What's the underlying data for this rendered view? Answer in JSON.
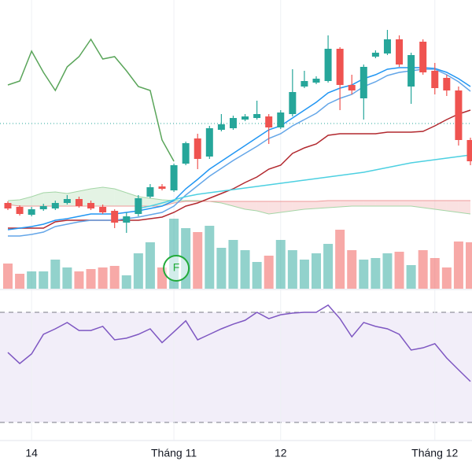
{
  "chart_data": {
    "type": "candlestick",
    "categories": [
      null,
      null,
      "14",
      null,
      null,
      null,
      null,
      null,
      null,
      null,
      null,
      null,
      null,
      null,
      "Tháng 11",
      null,
      null,
      null,
      null,
      null,
      null,
      null,
      null,
      "12",
      null,
      null,
      null,
      null,
      null,
      null,
      null,
      null,
      null,
      null,
      null,
      null,
      "Tháng 12",
      null,
      null,
      null
    ],
    "open": [
      342,
      337,
      327,
      334,
      335,
      342,
      347,
      342,
      337,
      332,
      317,
      328,
      350,
      363,
      358,
      392,
      424,
      401,
      435,
      437,
      448,
      450,
      452,
      438,
      455,
      490,
      495,
      497,
      538,
      492,
      475,
      528,
      532,
      550,
      490,
      547,
      510,
      501,
      485,
      422
    ],
    "high": [
      344,
      339,
      337,
      341,
      345,
      352,
      350,
      345,
      340,
      334,
      330,
      352,
      366,
      366,
      392,
      420,
      430,
      440,
      455,
      453,
      455,
      472,
      455,
      460,
      512,
      510,
      503,
      555,
      540,
      505,
      518,
      536,
      562,
      555,
      533,
      550,
      520,
      505,
      490,
      425
    ],
    "low": [
      333,
      326,
      325,
      332,
      333,
      340,
      336,
      333,
      328,
      310,
      304,
      325,
      348,
      358,
      356,
      390,
      385,
      398,
      433,
      435,
      446,
      448,
      417,
      436,
      452,
      488,
      493,
      495,
      460,
      480,
      448,
      526,
      530,
      515,
      468,
      505,
      480,
      478,
      415,
      390
    ],
    "close": [
      335,
      328,
      334,
      338,
      342,
      347,
      338,
      335,
      330,
      317,
      325,
      348,
      362,
      360,
      390,
      418,
      398,
      437,
      442,
      450,
      452,
      455,
      438,
      457,
      483,
      497,
      500,
      538,
      492,
      485,
      515,
      533,
      550,
      518,
      530,
      508,
      488,
      485,
      422,
      395
    ],
    "up_color": "#26a69a",
    "down_color": "#ef5350",
    "ylim": [
      0,
      600
    ],
    "price_line": 443,
    "price_line_color": "#26a69a",
    "lines": [
      {
        "color": "#5aa55a",
        "values": [
          492,
          497,
          535,
          508,
          485,
          515,
          528,
          550,
          525,
          528,
          510,
          490,
          485,
          422,
          395,
          null,
          null,
          null,
          null,
          null,
          null,
          null,
          null,
          null,
          null,
          null,
          null,
          null,
          null,
          null,
          null,
          null,
          null,
          null,
          null,
          null,
          null,
          null,
          null,
          null
        ]
      },
      {
        "color": "#b2282e",
        "values": [
          310,
          310,
          310,
          310,
          318,
          320,
          320,
          320,
          320,
          320,
          320,
          320,
          322,
          324,
          330,
          338,
          342,
          348,
          354,
          360,
          368,
          375,
          385,
          390,
          405,
          412,
          417,
          428,
          430,
          430,
          430,
          430,
          432,
          432,
          432,
          433,
          440,
          448,
          455,
          460
        ]
      },
      {
        "color": "#2196f3",
        "values": [
          308,
          310,
          312,
          315,
          320,
          322,
          325,
          328,
          328,
          328,
          330,
          332,
          335,
          338,
          345,
          360,
          372,
          385,
          395,
          405,
          415,
          425,
          435,
          440,
          450,
          460,
          470,
          482,
          488,
          492,
          500,
          505,
          512,
          514,
          514,
          514,
          513,
          508,
          500,
          490
        ]
      },
      {
        "color": "#64a6e8",
        "values": [
          300,
          300,
          302,
          305,
          312,
          315,
          318,
          320,
          320,
          320,
          322,
          324,
          327,
          330,
          338,
          352,
          364,
          376,
          386,
          396,
          405,
          414,
          424,
          430,
          440,
          448,
          456,
          468,
          475,
          480,
          490,
          496,
          504,
          508,
          510,
          512,
          512,
          505,
          496,
          484
        ]
      },
      {
        "color": "#4dd0e1",
        "values": [
          null,
          null,
          null,
          null,
          null,
          null,
          null,
          null,
          null,
          null,
          null,
          335,
          338,
          342,
          346,
          350,
          353,
          355,
          357,
          359,
          361,
          363,
          365,
          367,
          369,
          371,
          373,
          375,
          377,
          379,
          381,
          384,
          387,
          390,
          393,
          395,
          397,
          399,
          401,
          403
        ]
      }
    ],
    "cloud": {
      "span_a": [
        345,
        346,
        350,
        355,
        356,
        354,
        357,
        360,
        362,
        360,
        355,
        350,
        348,
        346,
        345,
        345,
        345,
        344,
        342,
        338,
        334,
        332,
        328,
        330,
        332,
        334,
        335,
        336,
        337,
        338,
        338,
        338,
        338,
        338,
        338,
        336,
        334,
        332,
        330,
        328
      ],
      "span_b": [
        340,
        338,
        338,
        338,
        338,
        338,
        338,
        338,
        338,
        338,
        338,
        338,
        338,
        338,
        342,
        344,
        344,
        344,
        344,
        344,
        344,
        344,
        344,
        344,
        344,
        344,
        344,
        345,
        345,
        345,
        345,
        345,
        345,
        345,
        345,
        345,
        345,
        345,
        345,
        345
      ],
      "up_color": "#a5d6a7",
      "down_color": "#ef9a9a"
    },
    "volume": [
      32,
      19,
      22,
      22,
      37,
      27,
      22,
      25,
      27,
      29,
      17,
      45,
      59,
      27,
      89,
      77,
      72,
      80,
      52,
      62,
      49,
      34,
      42,
      62,
      49,
      37,
      45,
      57,
      75,
      49,
      37,
      39,
      45,
      47,
      30,
      49,
      39,
      27,
      60,
      59
    ],
    "volume_ylim": [
      0,
      367
    ],
    "annotations": [
      {
        "text": "F",
        "index": 14,
        "color": "#22ab3a"
      }
    ],
    "rsi": [
      55.4,
      51.4,
      54.9,
      62,
      64,
      66.3,
      63.4,
      63.4,
      64.9,
      60,
      60.6,
      62,
      64,
      59,
      62.9,
      66.9,
      60,
      62,
      64,
      65.7,
      67.1,
      70,
      67.7,
      69.1,
      69.7,
      70,
      70,
      72.6,
      67.7,
      61.1,
      66.3,
      64.9,
      64,
      62,
      56.3,
      57.1,
      58.6,
      53.4,
      49.1,
      44.9
    ],
    "rsi_color": "#7e57c2",
    "rsi_ylim": [
      30,
      70
    ]
  }
}
